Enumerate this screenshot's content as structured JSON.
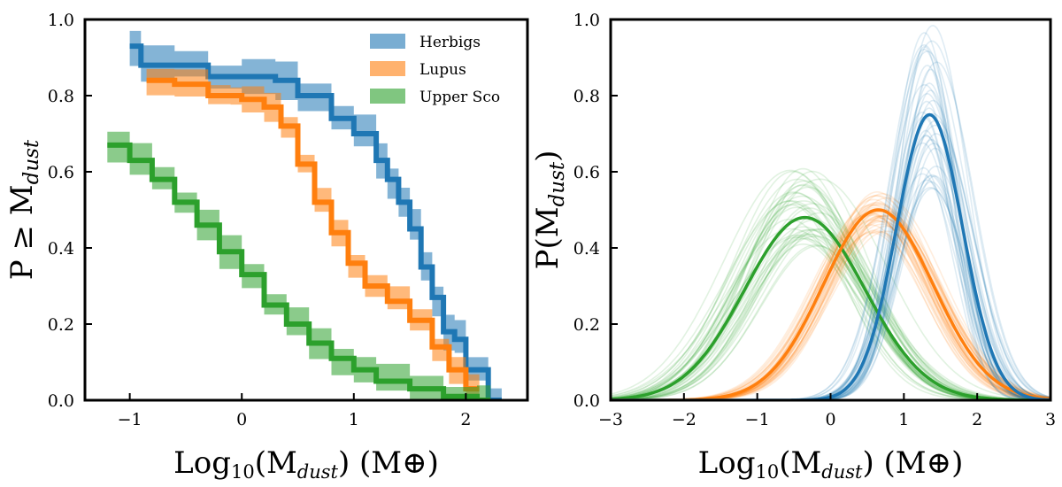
{
  "colors": {
    "herbigs": "#1f77b4",
    "lupus": "#ff7f0e",
    "uppersco": "#2ca02c"
  },
  "chart_data": [
    {
      "type": "line",
      "subtype": "cumulative-step-with-band",
      "xlim": [
        -1.4,
        2.55
      ],
      "ylim": [
        0.0,
        1.0
      ],
      "xticks": [
        -1,
        0,
        1,
        2
      ],
      "yticks": [
        0.0,
        0.2,
        0.4,
        0.6,
        0.8,
        1.0
      ],
      "xticklabels": [
        "−1",
        "0",
        "1",
        "2"
      ],
      "yticklabels": [
        "0.0",
        "0.2",
        "0.4",
        "0.6",
        "0.8",
        "1.0"
      ],
      "xlabel": {
        "prefix": "Log",
        "sub10": "10",
        "mid": "(M",
        "subdust": "dust",
        "suffix": ") (M⊕)"
      },
      "ylabel": {
        "prefix": "P ≥ M",
        "subdust": "dust"
      },
      "legend": {
        "position": "top-right",
        "entries": [
          "Herbigs",
          "Lupus",
          "Upper Sco"
        ]
      },
      "series": [
        {
          "name": "Herbigs",
          "color_key": "herbigs",
          "x": [
            -1.0,
            -0.9,
            -0.6,
            -0.3,
            0.0,
            0.3,
            0.5,
            0.8,
            1.0,
            1.2,
            1.3,
            1.4,
            1.5,
            1.6,
            1.7,
            1.8,
            1.9,
            2.0,
            2.2
          ],
          "y": [
            0.93,
            0.88,
            0.88,
            0.85,
            0.85,
            0.84,
            0.8,
            0.74,
            0.7,
            0.63,
            0.58,
            0.52,
            0.45,
            0.35,
            0.27,
            0.18,
            0.16,
            0.08,
            0.0
          ],
          "band_halfwidth": 0.04
        },
        {
          "name": "Lupus",
          "color_key": "lupus",
          "x": [
            -0.85,
            -0.6,
            -0.3,
            -0.1,
            0.0,
            0.2,
            0.35,
            0.5,
            0.65,
            0.8,
            0.95,
            1.1,
            1.3,
            1.5,
            1.7,
            1.85,
            2.0
          ],
          "y": [
            0.84,
            0.83,
            0.8,
            0.8,
            0.79,
            0.77,
            0.72,
            0.62,
            0.52,
            0.44,
            0.36,
            0.3,
            0.26,
            0.21,
            0.14,
            0.08,
            0.03
          ],
          "band_halfwidth": 0.03
        },
        {
          "name": "Upper Sco",
          "color_key": "uppersco",
          "x": [
            -1.2,
            -1.0,
            -0.8,
            -0.6,
            -0.4,
            -0.2,
            0.0,
            0.2,
            0.4,
            0.6,
            0.8,
            1.0,
            1.2,
            1.5,
            1.8,
            2.1
          ],
          "y": [
            0.67,
            0.63,
            0.58,
            0.52,
            0.46,
            0.39,
            0.33,
            0.25,
            0.2,
            0.15,
            0.11,
            0.08,
            0.05,
            0.03,
            0.01,
            0.0
          ],
          "band_halfwidth": 0.035
        }
      ]
    },
    {
      "type": "line",
      "subtype": "gaussian-posteriors",
      "xlim": [
        -3,
        3
      ],
      "ylim": [
        0.0,
        1.0
      ],
      "xticks": [
        -3,
        -2,
        -1,
        0,
        1,
        2,
        3
      ],
      "yticks": [
        0.0,
        0.2,
        0.4,
        0.6,
        0.8,
        1.0
      ],
      "xticklabels": [
        "−3",
        "−2",
        "−1",
        "0",
        "1",
        "2",
        "3"
      ],
      "yticklabels": [
        "0.0",
        "0.2",
        "0.4",
        "0.6",
        "0.8",
        "1.0"
      ],
      "xlabel": {
        "prefix": "Log",
        "sub10": "10",
        "mid": "(M",
        "subdust": "dust",
        "suffix": ") (M⊕)"
      },
      "ylabel": {
        "prefix": "P(M",
        "subdust": "dust",
        "suffix": ")"
      },
      "series": [
        {
          "name": "Upper Sco",
          "color_key": "uppersco",
          "mu": -0.35,
          "sigma": 0.82,
          "peak": 0.48,
          "draws": {
            "count": 40,
            "mu_spread": 0.22,
            "sigma_spread": 0.1,
            "peak_range": [
              0.4,
              0.61
            ]
          }
        },
        {
          "name": "Lupus",
          "color_key": "lupus",
          "mu": 0.65,
          "sigma": 0.75,
          "peak": 0.5,
          "draws": {
            "count": 40,
            "mu_spread": 0.12,
            "sigma_spread": 0.06,
            "peak_range": [
              0.44,
              0.55
            ]
          }
        },
        {
          "name": "Herbigs",
          "color_key": "herbigs",
          "mu": 1.35,
          "sigma": 0.45,
          "peak": 0.75,
          "draws": {
            "count": 40,
            "mu_spread": 0.1,
            "sigma_spread": 0.08,
            "peak_range": [
              0.55,
              1.0
            ]
          }
        }
      ]
    }
  ]
}
